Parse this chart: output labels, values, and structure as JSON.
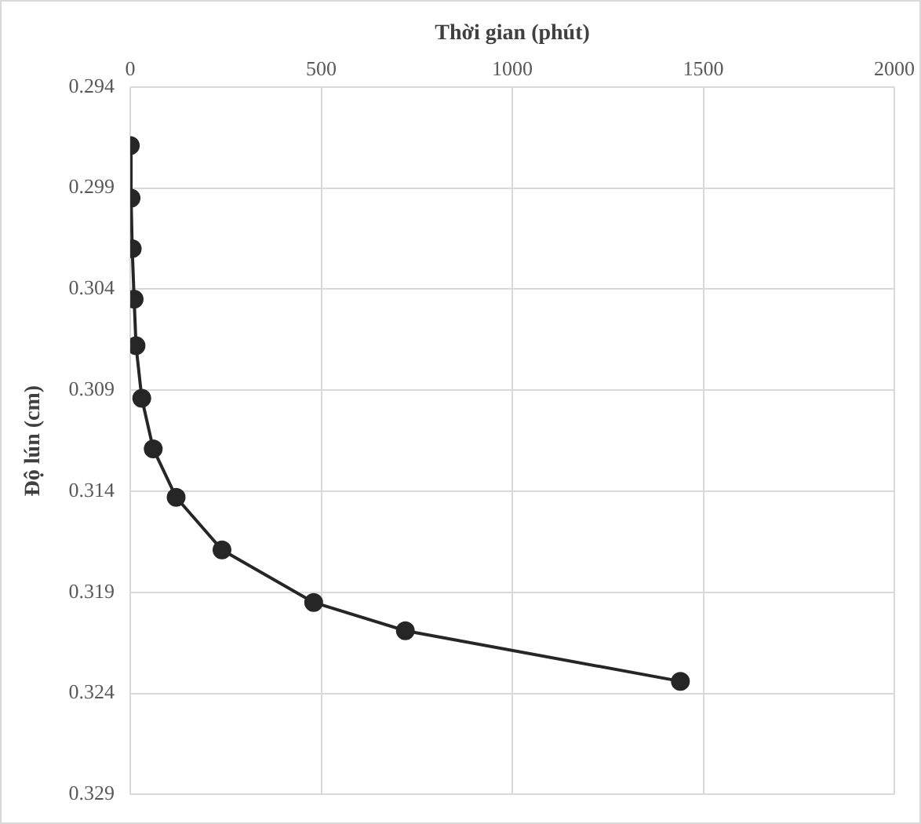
{
  "chart_data": {
    "type": "line",
    "xlabel": "Thời gian (phút)",
    "ylabel": "Độ lún (cm)",
    "x": [
      0,
      2,
      5,
      10,
      15,
      30,
      60,
      120,
      240,
      480,
      720,
      1440
    ],
    "values": [
      0.2969,
      0.2995,
      0.302,
      0.3045,
      0.3068,
      0.3094,
      0.3119,
      0.3143,
      0.3169,
      0.3195,
      0.3209,
      0.3234
    ],
    "color": "#262626",
    "marker": "circle",
    "line_style": "solid",
    "xlim": [
      0,
      2000
    ],
    "xticks": [
      0,
      500,
      1000,
      1500,
      2000
    ],
    "ylim": [
      0.329,
      0.294
    ],
    "yticks": [
      0.294,
      0.299,
      0.304,
      0.309,
      0.314,
      0.319,
      0.324,
      0.329
    ],
    "grid": true,
    "legend": false
  }
}
